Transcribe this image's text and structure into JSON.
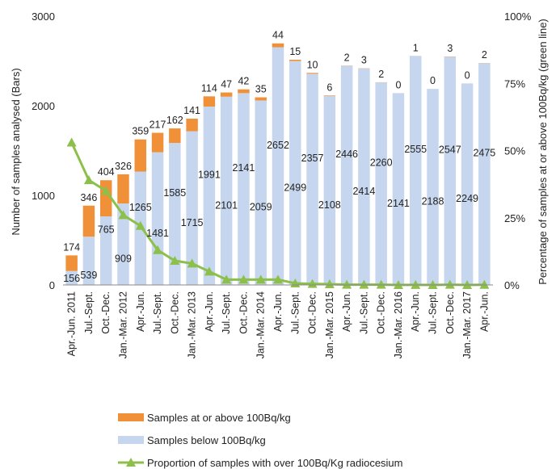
{
  "chart_data": {
    "type": "bar",
    "stacked": true,
    "categories": [
      "Apr.-Jun. 2011",
      "Jul.-Sept.",
      "Oct.-Dec.",
      "Jan.-Mar. 2012",
      "Apr.-Jun.",
      "Jul.-Sept.",
      "Oct.-Dec.",
      "Jan.-Mar. 2013",
      "Apr.-Jun.",
      "Jul.-Sept.",
      "Oct.-Dec.",
      "Jan.-Mar. 2014",
      "Apr.-Jun.",
      "Jul.-Sept.",
      "Oct.-Dec.",
      "Jan.-Mar. 2015",
      "Apr.-Jun.",
      "Jul.-Sept.",
      "Oct.-Dec.",
      "Jan.-Mar. 2016",
      "Apr.-Jun.",
      "Jul.-Sept.",
      "Oct.-Dec.",
      "Jan.-Mar. 2017",
      "Apr.-Jun."
    ],
    "series": [
      {
        "name": "Samples below 100Bq/kg",
        "color": "#c5d6ee",
        "values": [
          156,
          539,
          765,
          909,
          1265,
          1481,
          1585,
          1715,
          1991,
          2101,
          2141,
          2059,
          2652,
          2499,
          2357,
          2108,
          2446,
          2414,
          2260,
          2141,
          2555,
          2188,
          2547,
          2249,
          2475
        ]
      },
      {
        "name": "Samples at or above 100Bq/kg",
        "color": "#f0913a",
        "values": [
          174,
          346,
          404,
          326,
          359,
          217,
          162,
          141,
          114,
          47,
          42,
          35,
          44,
          15,
          10,
          6,
          2,
          3,
          2,
          0,
          1,
          0,
          3,
          0,
          2
        ]
      }
    ],
    "line": {
      "name": "Proportion of samples with over 100Bq/Kg radiocesium",
      "color": "#8cc04a",
      "axis": "right",
      "values": [
        53,
        39,
        35,
        26,
        22,
        13,
        9,
        8,
        5,
        2,
        2,
        2,
        2,
        0.6,
        0.4,
        0.3,
        0.1,
        0.1,
        0.1,
        0,
        0.04,
        0,
        0.1,
        0,
        0.08
      ]
    },
    "ylabel": "Number of samples analysed (Bars)",
    "y2label": "Percentage of samples at or above 100Bq/kg (green line)",
    "ylim": [
      0,
      3000
    ],
    "yticks": [
      "0",
      "1000",
      "2000",
      "3000"
    ],
    "y2lim": [
      0,
      100
    ],
    "y2ticks": [
      "0%",
      "25%",
      "50%",
      "75%",
      "100%"
    ],
    "grid": false,
    "legend_position": "bottom"
  }
}
